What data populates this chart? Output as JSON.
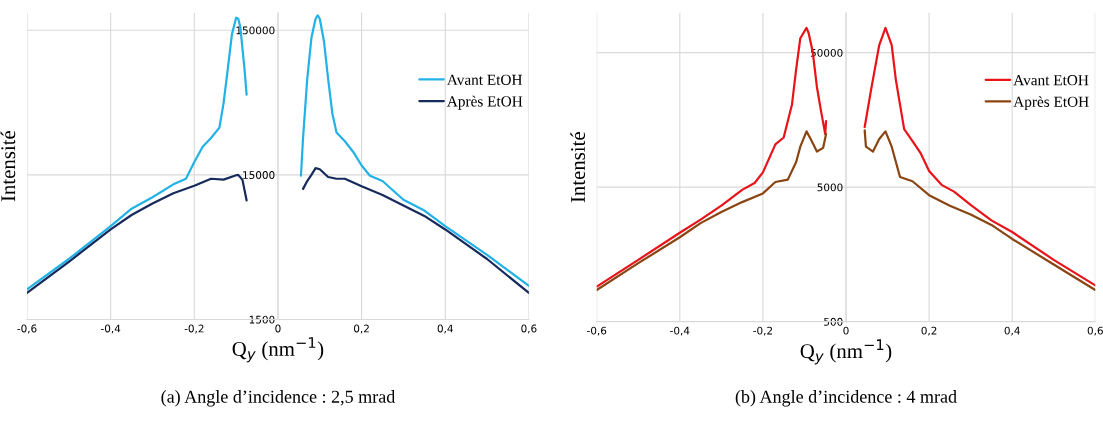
{
  "chart_data": [
    {
      "type": "line",
      "xlabel": "Q$_{y}$ (nm$^{−1}$)",
      "ylabel": "Intensité",
      "log": "y",
      "grid": true,
      "legend": "top right",
      "xlim": [
        -0.6,
        0.6
      ],
      "xticks": [
        {
          "value": -0.6,
          "label": "-0,6"
        },
        {
          "value": -0.4,
          "label": "-0,4"
        },
        {
          "value": -0.2,
          "label": "-0,2"
        },
        0,
        {
          "value": 0.2,
          "label": "0,2"
        },
        {
          "value": 0.4,
          "label": "0,4"
        },
        {
          "value": 0.6,
          "label": "0,6"
        }
      ],
      "ylim": [
        1500,
        198000
      ],
      "yticks": [
        1500,
        15000,
        150000
      ],
      "annotations": [
        "(a) Angle d’incidence : 2,5 mrad"
      ],
      "series": [
        {
          "name": "Avant EtOH",
          "color": "#22b2e6",
          "x": [
            -0.6,
            -0.5,
            -0.4,
            -0.35,
            -0.3,
            -0.25,
            -0.22,
            -0.2,
            -0.18,
            -0.16,
            -0.14,
            -0.13,
            -0.12,
            -0.11,
            -0.1,
            -0.095,
            -0.09,
            -0.08,
            -0.075,
            0,
            0.055,
            0.06,
            0.07,
            0.08,
            0.09,
            0.095,
            0.1,
            0.11,
            0.12,
            0.13,
            0.14,
            0.16,
            0.18,
            0.2,
            0.22,
            0.25,
            0.3,
            0.35,
            0.4,
            0.5,
            0.6
          ],
          "values": [
            2420,
            3930,
            6630,
            8750,
            10500,
            12900,
            14100,
            18400,
            23500,
            27000,
            31800,
            47000,
            81000,
            141000,
            183000,
            180000,
            158000,
            81000,
            53800,
            null,
            14800,
            27000,
            69000,
            133000,
            180000,
            190000,
            180000,
            126000,
            69000,
            40000,
            29400,
            25600,
            21600,
            17400,
            14800,
            13600,
            10100,
            8500,
            6630,
            4200,
            2560
          ]
        },
        {
          "name": "Après EtOH",
          "color": "#172a5c",
          "x": [
            -0.6,
            -0.5,
            -0.4,
            -0.35,
            -0.3,
            -0.25,
            -0.2,
            -0.16,
            -0.13,
            -0.1,
            -0.095,
            -0.085,
            -0.075,
            0,
            0.06,
            0.07,
            0.08,
            0.09,
            0.1,
            0.12,
            0.14,
            0.16,
            0.2,
            0.25,
            0.3,
            0.35,
            0.4,
            0.5,
            0.6
          ],
          "values": [
            2290,
            3760,
            6290,
            7920,
            9500,
            11200,
            12600,
            14100,
            13900,
            14900,
            15000,
            13900,
            10000,
            null,
            12000,
            13600,
            15000,
            16700,
            16400,
            14500,
            14100,
            14100,
            12500,
            10900,
            9200,
            7800,
            6290,
            3930,
            2290
          ]
        }
      ]
    },
    {
      "type": "line",
      "xlabel": "Q$_{y}$ (nm$^{−1}$)",
      "ylabel": "Intensité",
      "log": "y",
      "grid": true,
      "legend": "top right",
      "xlim": [
        -0.6,
        0.6
      ],
      "xticks": [
        {
          "value": -0.6,
          "label": "-0,6"
        },
        {
          "value": -0.4,
          "label": "-0,4"
        },
        {
          "value": -0.2,
          "label": "-0,2"
        },
        0,
        {
          "value": 0.2,
          "label": "0,2"
        },
        {
          "value": 0.4,
          "label": "0,4"
        },
        {
          "value": 0.6,
          "label": "0,6"
        }
      ],
      "ylim": [
        500,
        99000
      ],
      "yticks": [
        500,
        5000,
        50000
      ],
      "annotations": [
        "(b) Angle d’incidence : 4 mrad"
      ],
      "series": [
        {
          "name": "Avant EtOH",
          "color": "#e8141a",
          "x": [
            -0.6,
            -0.5,
            -0.4,
            -0.35,
            -0.3,
            -0.25,
            -0.22,
            -0.2,
            -0.17,
            -0.15,
            -0.13,
            -0.12,
            -0.11,
            -0.095,
            -0.09,
            -0.08,
            -0.07,
            -0.06,
            -0.05,
            -0.048,
            0,
            0.045,
            0.06,
            0.08,
            0.095,
            0.11,
            0.12,
            0.14,
            0.16,
            0.18,
            0.2,
            0.23,
            0.26,
            0.3,
            0.35,
            0.4,
            0.5,
            0.6
          ],
          "values": [
            910,
            1440,
            2290,
            2870,
            3640,
            4770,
            5370,
            6440,
            10400,
            11700,
            20600,
            37500,
            64000,
            76500,
            70000,
            50500,
            27800,
            18300,
            12400,
            15500,
            null,
            14000,
            26100,
            57000,
            76500,
            57000,
            31400,
            13500,
            11000,
            8900,
            6600,
            5200,
            4630,
            3690,
            2830,
            2320,
            1440,
            930
          ]
        },
        {
          "name": "Après EtOH",
          "color": "#8b4513",
          "x": [
            -0.6,
            -0.5,
            -0.4,
            -0.35,
            -0.3,
            -0.25,
            -0.2,
            -0.17,
            -0.14,
            -0.12,
            -0.11,
            -0.095,
            -0.085,
            -0.07,
            -0.055,
            -0.048,
            0,
            0.045,
            0.048,
            0.065,
            0.08,
            0.095,
            0.11,
            0.13,
            0.16,
            0.2,
            0.25,
            0.3,
            0.35,
            0.4,
            0.5,
            0.6
          ],
          "values": [
            860,
            1360,
            2120,
            2700,
            3270,
            3870,
            4490,
            5460,
            5690,
            7700,
            10000,
            13000,
            11400,
            9200,
            9800,
            12400,
            null,
            13200,
            10000,
            9200,
            11400,
            13000,
            10000,
            5950,
            5530,
            4360,
            3640,
            3130,
            2620,
            2060,
            1330,
            860
          ]
        }
      ]
    }
  ]
}
